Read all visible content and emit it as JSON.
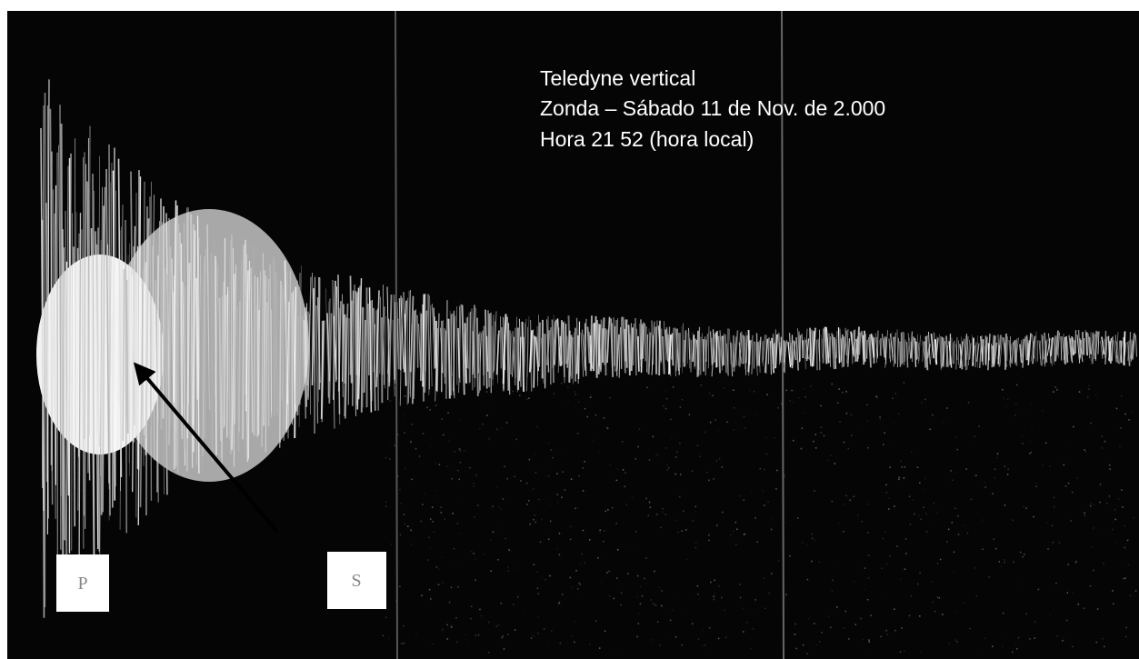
{
  "caption": {
    "lines": [
      "Teledyne vertical",
      "Zonda – Sábado 11 de Nov. de 2.000",
      "Hora 21 52 (hora local)"
    ]
  },
  "markers": {
    "p": "P",
    "s": "S"
  }
}
